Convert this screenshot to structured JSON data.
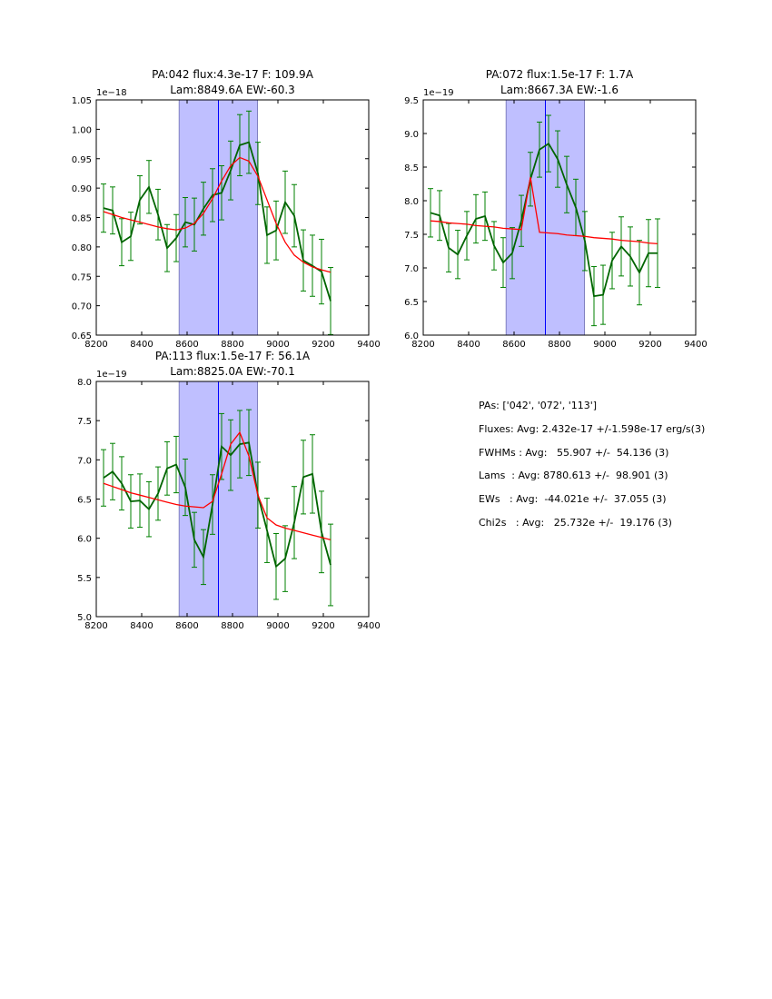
{
  "colors": {
    "data": "#006400",
    "errorbar": "#008000",
    "fit": "#ff0000",
    "span": "#bfbfff",
    "center_line": "#0000ff"
  },
  "chart_data": [
    {
      "type": "line",
      "title_line1": "PA:042 flux:4.3e-17 F: 109.9A",
      "title_line2": "Lam:8849.6A EW:-60.3",
      "offset_label": "1e−18",
      "xlim": [
        8200,
        9400
      ],
      "ylim": [
        0.65,
        1.05
      ],
      "xticks": [
        8200,
        8400,
        8600,
        8800,
        9000,
        9200,
        9400
      ],
      "xtick_labels": [
        "8200",
        "8400",
        "8600",
        "8800",
        "9000",
        "9200",
        "9400"
      ],
      "yticks": [
        0.65,
        0.7,
        0.75,
        0.8,
        0.85,
        0.9,
        0.95,
        1.0,
        1.05
      ],
      "ytick_labels": [
        "0.65",
        "0.70",
        "0.75",
        "0.80",
        "0.85",
        "0.90",
        "0.95",
        "1.00",
        "1.05"
      ],
      "span": [
        8565,
        8910
      ],
      "center": 8738,
      "x": [
        8232,
        8272,
        8312,
        8352,
        8392,
        8432,
        8472,
        8512,
        8552,
        8592,
        8632,
        8672,
        8712,
        8752,
        8792,
        8832,
        8872,
        8912,
        8952,
        8992,
        9032,
        9072,
        9112,
        9152,
        9192,
        9232
      ],
      "y": [
        0.866,
        0.862,
        0.808,
        0.818,
        0.88,
        0.902,
        0.855,
        0.798,
        0.815,
        0.842,
        0.838,
        0.865,
        0.888,
        0.892,
        0.93,
        0.973,
        0.978,
        0.925,
        0.82,
        0.828,
        0.876,
        0.853,
        0.777,
        0.768,
        0.758,
        0.708
      ],
      "yerr": [
        0.041,
        0.04,
        0.04,
        0.041,
        0.041,
        0.045,
        0.043,
        0.04,
        0.04,
        0.042,
        0.045,
        0.045,
        0.045,
        0.046,
        0.05,
        0.052,
        0.053,
        0.053,
        0.048,
        0.05,
        0.053,
        0.053,
        0.052,
        0.052,
        0.055,
        0.057
      ],
      "fit": [
        0.86,
        0.855,
        0.85,
        0.846,
        0.842,
        0.838,
        0.834,
        0.831,
        0.829,
        0.832,
        0.84,
        0.857,
        0.882,
        0.912,
        0.938,
        0.952,
        0.946,
        0.92,
        0.88,
        0.84,
        0.808,
        0.786,
        0.774,
        0.766,
        0.761,
        0.757
      ]
    },
    {
      "type": "line",
      "title_line1": "PA:072 flux:1.5e-17 F: 1.7A",
      "title_line2": "Lam:8667.3A EW:-1.6",
      "offset_label": "1e−19",
      "xlim": [
        8200,
        9400
      ],
      "ylim": [
        6.0,
        9.5
      ],
      "xticks": [
        8200,
        8400,
        8600,
        8800,
        9000,
        9200,
        9400
      ],
      "xtick_labels": [
        "8200",
        "8400",
        "8600",
        "8800",
        "9000",
        "9200",
        "9400"
      ],
      "yticks": [
        6.0,
        6.5,
        7.0,
        7.5,
        8.0,
        8.5,
        9.0,
        9.5
      ],
      "ytick_labels": [
        "6.0",
        "6.5",
        "7.0",
        "7.5",
        "8.0",
        "8.5",
        "9.0",
        "9.5"
      ],
      "span": [
        8565,
        8910
      ],
      "center": 8738,
      "x": [
        8232,
        8272,
        8312,
        8352,
        8392,
        8432,
        8472,
        8512,
        8552,
        8592,
        8632,
        8672,
        8712,
        8752,
        8792,
        8832,
        8872,
        8912,
        8952,
        8992,
        9032,
        9072,
        9112,
        9152,
        9192,
        9232
      ],
      "y": [
        7.82,
        7.78,
        7.3,
        7.2,
        7.48,
        7.73,
        7.77,
        7.33,
        7.08,
        7.22,
        7.7,
        8.32,
        8.76,
        8.85,
        8.62,
        8.24,
        7.9,
        7.4,
        6.58,
        6.6,
        7.11,
        7.32,
        7.17,
        6.93,
        7.22,
        7.22
      ],
      "yerr": [
        0.36,
        0.37,
        0.36,
        0.36,
        0.36,
        0.36,
        0.36,
        0.36,
        0.37,
        0.38,
        0.38,
        0.4,
        0.41,
        0.42,
        0.42,
        0.42,
        0.42,
        0.44,
        0.44,
        0.44,
        0.42,
        0.44,
        0.44,
        0.48,
        0.5,
        0.51
      ],
      "fit": [
        7.7,
        7.69,
        7.67,
        7.66,
        7.65,
        7.63,
        7.62,
        7.61,
        7.59,
        7.58,
        7.57,
        8.35,
        7.53,
        7.52,
        7.51,
        7.49,
        7.48,
        7.47,
        7.45,
        7.44,
        7.43,
        7.41,
        7.4,
        7.39,
        7.37,
        7.36
      ]
    },
    {
      "type": "line",
      "title_line1": "PA:113 flux:1.5e-17 F: 56.1A",
      "title_line2": "Lam:8825.0A EW:-70.1",
      "offset_label": "1e−19",
      "xlim": [
        8200,
        9400
      ],
      "ylim": [
        5.0,
        8.0
      ],
      "xticks": [
        8200,
        8400,
        8600,
        8800,
        9000,
        9200,
        9400
      ],
      "xtick_labels": [
        "8200",
        "8400",
        "8600",
        "8800",
        "9000",
        "9200",
        "9400"
      ],
      "yticks": [
        5.0,
        5.5,
        6.0,
        6.5,
        7.0,
        7.5,
        8.0
      ],
      "ytick_labels": [
        "5.0",
        "5.5",
        "6.0",
        "6.5",
        "7.0",
        "7.5",
        "8.0"
      ],
      "span": [
        8565,
        8910
      ],
      "center": 8738,
      "x": [
        8232,
        8272,
        8312,
        8352,
        8392,
        8432,
        8472,
        8512,
        8552,
        8592,
        8632,
        8672,
        8712,
        8752,
        8792,
        8832,
        8872,
        8912,
        8952,
        8992,
        9032,
        9072,
        9112,
        9152,
        9192,
        9232
      ],
      "y": [
        6.77,
        6.85,
        6.7,
        6.47,
        6.48,
        6.37,
        6.57,
        6.89,
        6.94,
        6.65,
        5.98,
        5.76,
        6.43,
        7.17,
        7.06,
        7.2,
        7.22,
        6.55,
        6.1,
        5.64,
        5.74,
        6.2,
        6.78,
        6.82,
        6.08,
        5.66
      ],
      "yerr": [
        0.36,
        0.36,
        0.34,
        0.34,
        0.34,
        0.35,
        0.34,
        0.34,
        0.36,
        0.36,
        0.35,
        0.35,
        0.38,
        0.42,
        0.45,
        0.43,
        0.42,
        0.42,
        0.41,
        0.42,
        0.42,
        0.46,
        0.47,
        0.5,
        0.52,
        0.52
      ],
      "fit": [
        6.7,
        6.66,
        6.62,
        6.58,
        6.55,
        6.52,
        6.49,
        6.46,
        6.43,
        6.41,
        6.4,
        6.39,
        6.47,
        6.82,
        7.2,
        7.35,
        7.05,
        6.55,
        6.26,
        6.17,
        6.13,
        6.1,
        6.07,
        6.04,
        6.01,
        5.98
      ]
    }
  ],
  "summary": {
    "pas": "PAs: ['042', '072', '113']",
    "fluxes": "Fluxes: Avg: 2.432e-17 +/-1.598e-17 erg/s(3)",
    "fwhms": "FWHMs : Avg:   55.907 +/-  54.136 (3)",
    "lams": "Lams  : Avg: 8780.613 +/-  98.901 (3)",
    "ews": "EWs   : Avg:  -44.021e +/-  37.055 (3)",
    "chi2s": "Chi2s   : Avg:   25.732e +/-  19.176 (3)"
  }
}
